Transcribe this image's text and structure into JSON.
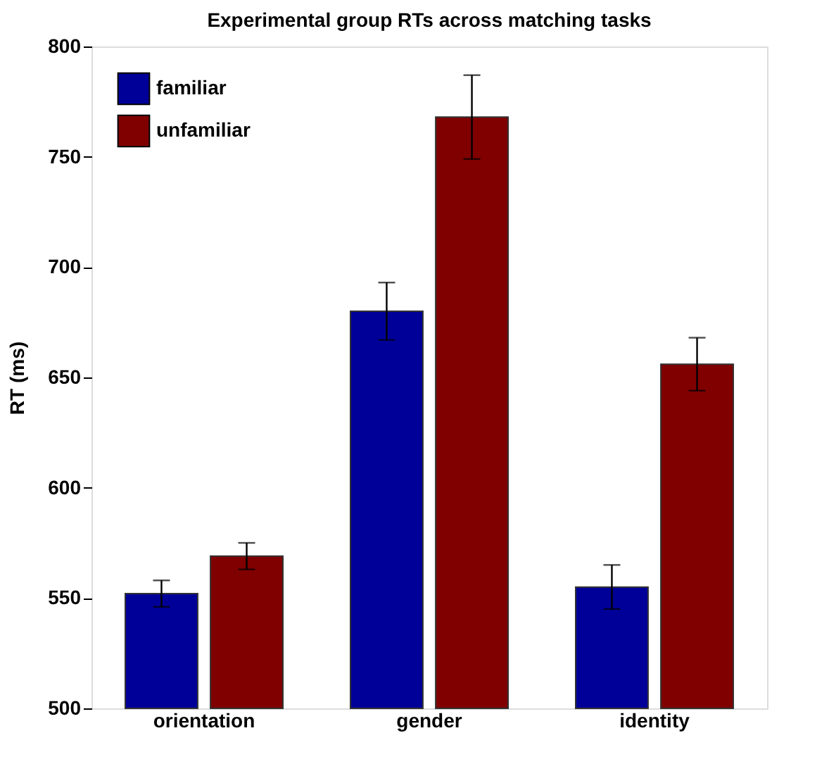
{
  "chart_data": {
    "type": "bar",
    "title": "Experimental group RTs across matching tasks",
    "ylabel": "RT (ms)",
    "categories": [
      "orientation",
      "gender",
      "identity"
    ],
    "series": [
      {
        "name": "familiar",
        "color": "#000099",
        "values": [
          552,
          680,
          555
        ],
        "errors": [
          6,
          13,
          10
        ]
      },
      {
        "name": "unfamiliar",
        "color": "#800000",
        "values": [
          569,
          768,
          656
        ],
        "errors": [
          6,
          19,
          12
        ]
      }
    ],
    "ylim": [
      500,
      800
    ],
    "yticks": [
      500,
      550,
      600,
      650,
      700,
      750,
      800
    ],
    "grid": false,
    "legend": "top left"
  }
}
